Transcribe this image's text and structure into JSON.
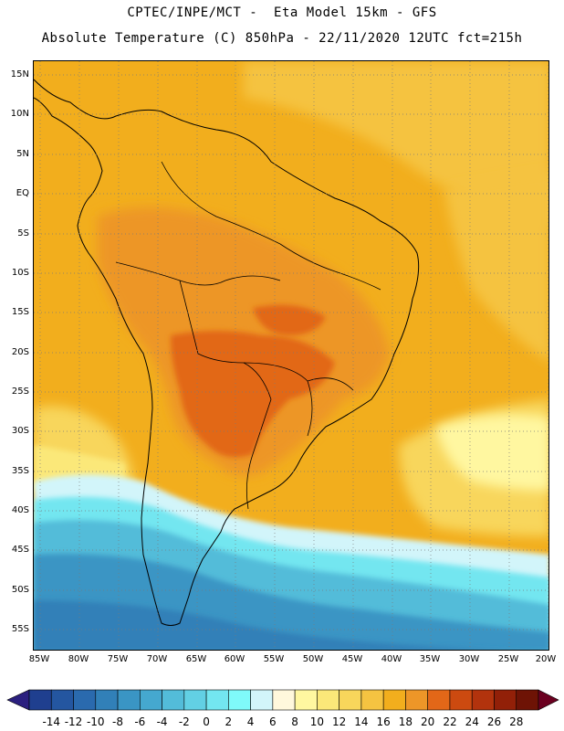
{
  "header": {
    "line1": "CPTEC/INPE/MCT -  Eta Model 15km - GFS",
    "line2": "Absolute Temperature (C) 850hPa - 22/11/2020 12UTC fct=215h"
  },
  "map": {
    "lat_labels": [
      "15N",
      "10N",
      "5N",
      "EQ",
      "5S",
      "10S",
      "15S",
      "20S",
      "25S",
      "30S",
      "35S",
      "40S",
      "45S",
      "50S",
      "55S"
    ],
    "lon_labels": [
      "85W",
      "80W",
      "75W",
      "70W",
      "65W",
      "60W",
      "55W",
      "50W",
      "45W",
      "40W",
      "35W",
      "30W",
      "25W",
      "20W"
    ]
  },
  "colorbar": {
    "labels": [
      "-14",
      "-12",
      "-10",
      "-8",
      "-6",
      "-4",
      "-2",
      "0",
      "2",
      "4",
      "6",
      "8",
      "10",
      "12",
      "14",
      "16",
      "18",
      "20",
      "22",
      "24",
      "26",
      "28"
    ],
    "colors": [
      "#1f3f8f",
      "#2456a0",
      "#2a6aae",
      "#3180b8",
      "#3a95c4",
      "#45a8cf",
      "#53bcd9",
      "#62d0e4",
      "#73e6f0",
      "#7ffafa",
      "#d2f5fa",
      "#fff8dc",
      "#fff7a0",
      "#fbe879",
      "#f8d65b",
      "#f5c341",
      "#f2ae1d",
      "#ed9628",
      "#e26718",
      "#cc4a10",
      "#b2330d",
      "#922008",
      "#6e1305"
    ],
    "under_color": "#2b207f",
    "over_color": "#6b0020"
  }
}
